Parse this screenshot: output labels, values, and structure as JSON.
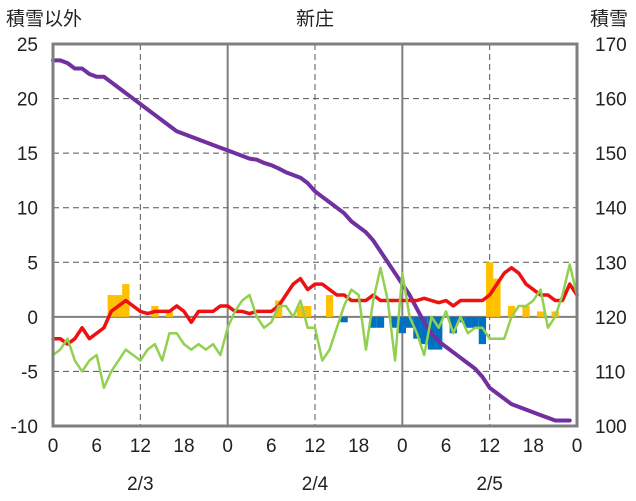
{
  "chart_data": {
    "type": "line",
    "title": "新庄",
    "ylabel_left": "積雪以外",
    "ylabel_right": "積雪",
    "ylim_left": [
      -10,
      25
    ],
    "yticks_left": [
      25,
      20,
      15,
      10,
      5,
      0,
      -5,
      -10
    ],
    "ylim_right": [
      100,
      170
    ],
    "yticks_right": [
      170,
      160,
      150,
      140,
      130,
      120,
      110,
      100
    ],
    "xlim_hours": [
      0,
      72
    ],
    "xtick_labels": [
      "0",
      "6",
      "12",
      "18",
      "0",
      "6",
      "12",
      "18",
      "0",
      "6",
      "12",
      "18",
      "0"
    ],
    "date_labels": [
      {
        "label": "2/3",
        "hour": 12
      },
      {
        "label": "2/4",
        "hour": 36
      },
      {
        "label": "2/5",
        "hour": 60
      }
    ],
    "grid": {
      "vertical_dashed_hours": [
        12,
        36,
        60
      ],
      "vertical_solid_hours": [
        24,
        48
      ],
      "horizontal": [
        5,
        15,
        25,
        20,
        10,
        -5
      ]
    },
    "colors": {
      "snow_depth": "#7030a0",
      "temperature": "#ee1111",
      "wind_precip_green": "#92d050",
      "bar_positive": "#ffc000",
      "bar_negative": "#0070c0",
      "axis": "#7f7f7f"
    },
    "series": [
      {
        "axis": "right",
        "values": [
          [
            0,
            167
          ],
          [
            1,
            167
          ],
          [
            2,
            166.5
          ],
          [
            3,
            165.5
          ],
          [
            4,
            165.5
          ],
          [
            5,
            164.5
          ],
          [
            6,
            164
          ],
          [
            7,
            164
          ],
          [
            8,
            163
          ],
          [
            9,
            162
          ],
          [
            10,
            161
          ],
          [
            11,
            160
          ],
          [
            12,
            159
          ],
          [
            13,
            158
          ],
          [
            14,
            157
          ],
          [
            15,
            156
          ],
          [
            16,
            155
          ],
          [
            17,
            154
          ],
          [
            18,
            153.5
          ],
          [
            19,
            153
          ],
          [
            20,
            152.5
          ],
          [
            21,
            152
          ],
          [
            22,
            151.5
          ],
          [
            23,
            151
          ],
          [
            24,
            150.5
          ],
          [
            25,
            150
          ],
          [
            26,
            149.5
          ],
          [
            27,
            149
          ],
          [
            28,
            148.8
          ],
          [
            29,
            148.2
          ],
          [
            30,
            147.8
          ],
          [
            31,
            147.2
          ],
          [
            32,
            146.5
          ],
          [
            33,
            146
          ],
          [
            34,
            145.5
          ],
          [
            35,
            144.5
          ],
          [
            36,
            143
          ],
          [
            37,
            142
          ],
          [
            38,
            141
          ],
          [
            39,
            140
          ],
          [
            40,
            139
          ],
          [
            41,
            137.5
          ],
          [
            42,
            136.5
          ],
          [
            43,
            135.5
          ],
          [
            44,
            134
          ],
          [
            45,
            132
          ],
          [
            46,
            130
          ],
          [
            47,
            128
          ],
          [
            48,
            126
          ],
          [
            49,
            124
          ],
          [
            50,
            121.5
          ],
          [
            51,
            119
          ],
          [
            52,
            117
          ],
          [
            53,
            115.5
          ],
          [
            54,
            114.5
          ],
          [
            55,
            113.5
          ],
          [
            56,
            112.5
          ],
          [
            57,
            111.5
          ],
          [
            58,
            110.5
          ],
          [
            59,
            109
          ],
          [
            60,
            107
          ],
          [
            61,
            106
          ],
          [
            62,
            105
          ],
          [
            63,
            104
          ],
          [
            64,
            103.5
          ],
          [
            65,
            103
          ],
          [
            66,
            102.5
          ],
          [
            67,
            102
          ],
          [
            68,
            101.5
          ],
          [
            69,
            101
          ],
          [
            70,
            101
          ],
          [
            71,
            101
          ]
        ]
      },
      {
        "axis": "left",
        "values": [
          [
            0,
            -2
          ],
          [
            1,
            -2
          ],
          [
            2,
            -2.5
          ],
          [
            3,
            -2
          ],
          [
            4,
            -1
          ],
          [
            5,
            -2
          ],
          [
            6,
            -1.5
          ],
          [
            7,
            -1
          ],
          [
            8,
            0.5
          ],
          [
            9,
            1
          ],
          [
            10,
            1.5
          ],
          [
            11,
            1
          ],
          [
            12,
            0.5
          ],
          [
            13,
            0.3
          ],
          [
            14,
            0.5
          ],
          [
            15,
            0.5
          ],
          [
            16,
            0.5
          ],
          [
            17,
            1
          ],
          [
            18,
            0.5
          ],
          [
            19,
            -0.5
          ],
          [
            20,
            0.5
          ],
          [
            21,
            0.5
          ],
          [
            22,
            0.5
          ],
          [
            23,
            1
          ],
          [
            24,
            1
          ],
          [
            25,
            0.5
          ],
          [
            26,
            0.5
          ],
          [
            27,
            0.3
          ],
          [
            28,
            0.5
          ],
          [
            29,
            0.5
          ],
          [
            30,
            0.5
          ],
          [
            31,
            1
          ],
          [
            32,
            2
          ],
          [
            33,
            3
          ],
          [
            34,
            3.5
          ],
          [
            35,
            2.5
          ],
          [
            36,
            3
          ],
          [
            37,
            3
          ],
          [
            38,
            2.5
          ],
          [
            39,
            2
          ],
          [
            40,
            2
          ],
          [
            41,
            1.5
          ],
          [
            42,
            1.5
          ],
          [
            43,
            1.5
          ],
          [
            44,
            2
          ],
          [
            45,
            1.5
          ],
          [
            46,
            1.5
          ],
          [
            47,
            1.5
          ],
          [
            48,
            1.5
          ],
          [
            49,
            1.5
          ],
          [
            50,
            1.5
          ],
          [
            51,
            1.7
          ],
          [
            52,
            1.5
          ],
          [
            53,
            1.3
          ],
          [
            54,
            1.5
          ],
          [
            55,
            1
          ],
          [
            56,
            1.5
          ],
          [
            57,
            1.5
          ],
          [
            58,
            1.5
          ],
          [
            59,
            1.5
          ],
          [
            60,
            2
          ],
          [
            61,
            3
          ],
          [
            62,
            4
          ],
          [
            63,
            4.5
          ],
          [
            64,
            4
          ],
          [
            65,
            3
          ],
          [
            66,
            2.5
          ],
          [
            67,
            2
          ],
          [
            68,
            2
          ],
          [
            69,
            1.5
          ],
          [
            70,
            1.5
          ],
          [
            71,
            3
          ],
          [
            72,
            2
          ]
        ]
      },
      {
        "axis": "left",
        "values": [
          [
            0,
            -3.5
          ],
          [
            1,
            -3
          ],
          [
            2,
            -2
          ],
          [
            3,
            -4
          ],
          [
            4,
            -5
          ],
          [
            5,
            -4
          ],
          [
            6,
            -3.5
          ],
          [
            7,
            -6.5
          ],
          [
            8,
            -5
          ],
          [
            9,
            -4
          ],
          [
            10,
            -3
          ],
          [
            11,
            -3.5
          ],
          [
            12,
            -4
          ],
          [
            13,
            -3
          ],
          [
            14,
            -2.5
          ],
          [
            15,
            -4
          ],
          [
            16,
            -1.5
          ],
          [
            17,
            -1.5
          ],
          [
            18,
            -2.5
          ],
          [
            19,
            -3
          ],
          [
            20,
            -2.5
          ],
          [
            21,
            -3
          ],
          [
            22,
            -2.5
          ],
          [
            23,
            -3.5
          ],
          [
            24,
            -1
          ],
          [
            25,
            0.5
          ],
          [
            26,
            1.5
          ],
          [
            27,
            2
          ],
          [
            28,
            0
          ],
          [
            29,
            -1
          ],
          [
            30,
            -0.5
          ],
          [
            31,
            1
          ],
          [
            32,
            1
          ],
          [
            33,
            0
          ],
          [
            34,
            1.5
          ],
          [
            35,
            -1
          ],
          [
            36,
            -1
          ],
          [
            37,
            -4
          ],
          [
            38,
            -3
          ],
          [
            39,
            -1
          ],
          [
            40,
            1
          ],
          [
            41,
            2.5
          ],
          [
            42,
            2
          ],
          [
            43,
            -3
          ],
          [
            44,
            1.5
          ],
          [
            45,
            4.5
          ],
          [
            46,
            1.5
          ],
          [
            47,
            -4
          ],
          [
            48,
            4
          ],
          [
            49,
            0
          ],
          [
            50,
            -1.5
          ],
          [
            51,
            -3.5
          ],
          [
            52,
            0
          ],
          [
            53,
            -1
          ],
          [
            54,
            0.5
          ],
          [
            55,
            -1.5
          ],
          [
            56,
            0
          ],
          [
            57,
            -1.5
          ],
          [
            58,
            -1
          ],
          [
            59,
            -1
          ],
          [
            60,
            -2
          ],
          [
            61,
            -2
          ],
          [
            62,
            -2
          ],
          [
            63,
            0
          ],
          [
            64,
            1
          ],
          [
            65,
            1
          ],
          [
            66,
            1.5
          ],
          [
            67,
            2.5
          ],
          [
            68,
            -1
          ],
          [
            69,
            0
          ],
          [
            70,
            2
          ],
          [
            71,
            4.8
          ],
          [
            72,
            2
          ]
        ]
      },
      {
        "axis": "left",
        "bars": [
          [
            8,
            2
          ],
          [
            9,
            2
          ],
          [
            10,
            3
          ],
          [
            14,
            1
          ],
          [
            16,
            0.5
          ],
          [
            31,
            1.5
          ],
          [
            34,
            1
          ],
          [
            35,
            1
          ],
          [
            38,
            2
          ],
          [
            60,
            5
          ],
          [
            61,
            3.5
          ],
          [
            63,
            1
          ],
          [
            65,
            1
          ],
          [
            67,
            0.5
          ],
          [
            69,
            0.5
          ],
          [
            40,
            -0.5
          ],
          [
            44,
            -1
          ],
          [
            45,
            -1
          ],
          [
            47,
            -1
          ],
          [
            48,
            -1.5
          ],
          [
            49,
            -1
          ],
          [
            50,
            -2
          ],
          [
            51,
            -2.5
          ],
          [
            52,
            -3
          ],
          [
            53,
            -3
          ],
          [
            55,
            -1.5
          ],
          [
            56,
            -0.5
          ],
          [
            57,
            -1
          ],
          [
            58,
            -1
          ],
          [
            59,
            -2.5
          ]
        ]
      }
    ]
  }
}
